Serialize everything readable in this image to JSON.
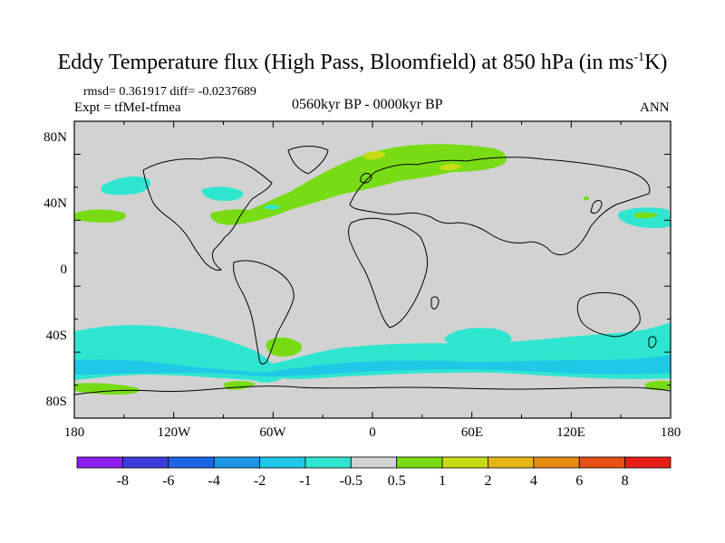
{
  "title": {
    "main": "Eddy Temperature flux (High Pass, Bloomfield) at 850 hPa (in ms",
    "unit_exp": "-1",
    "unit_tail": "K)"
  },
  "stats": "rmsd= 0.361917 diff= -0.0237689",
  "experiment": "Expt = tfMeI-tfmea",
  "period": "0560kyr BP - 0000kyr BP",
  "season": "ANN",
  "lat_ticks": [
    "80N",
    "40N",
    "0",
    "40S",
    "80S"
  ],
  "lon_ticks": [
    "180",
    "120W",
    "60W",
    "0",
    "60E",
    "120E",
    "180"
  ],
  "colorbar": {
    "labels": [
      "-8",
      "-6",
      "-4",
      "-2",
      "-1",
      "-0.5",
      "0.5",
      "1",
      "2",
      "4",
      "6",
      "8"
    ],
    "colors": [
      "#8c1ef0",
      "#3c3cdc",
      "#1e64e6",
      "#1e96e6",
      "#1ec8e6",
      "#2ee6d0",
      "#d2d2d2",
      "#78dc14",
      "#c8dc14",
      "#e6b414",
      "#e68c14",
      "#e65014",
      "#e61e14"
    ]
  },
  "palette": {
    "neutral": "#d2d2d2",
    "neg_light": "#2ee6d0",
    "neg_mid": "#1ec8e6",
    "pos_light": "#78dc14",
    "pos_mid": "#c8dc14"
  }
}
